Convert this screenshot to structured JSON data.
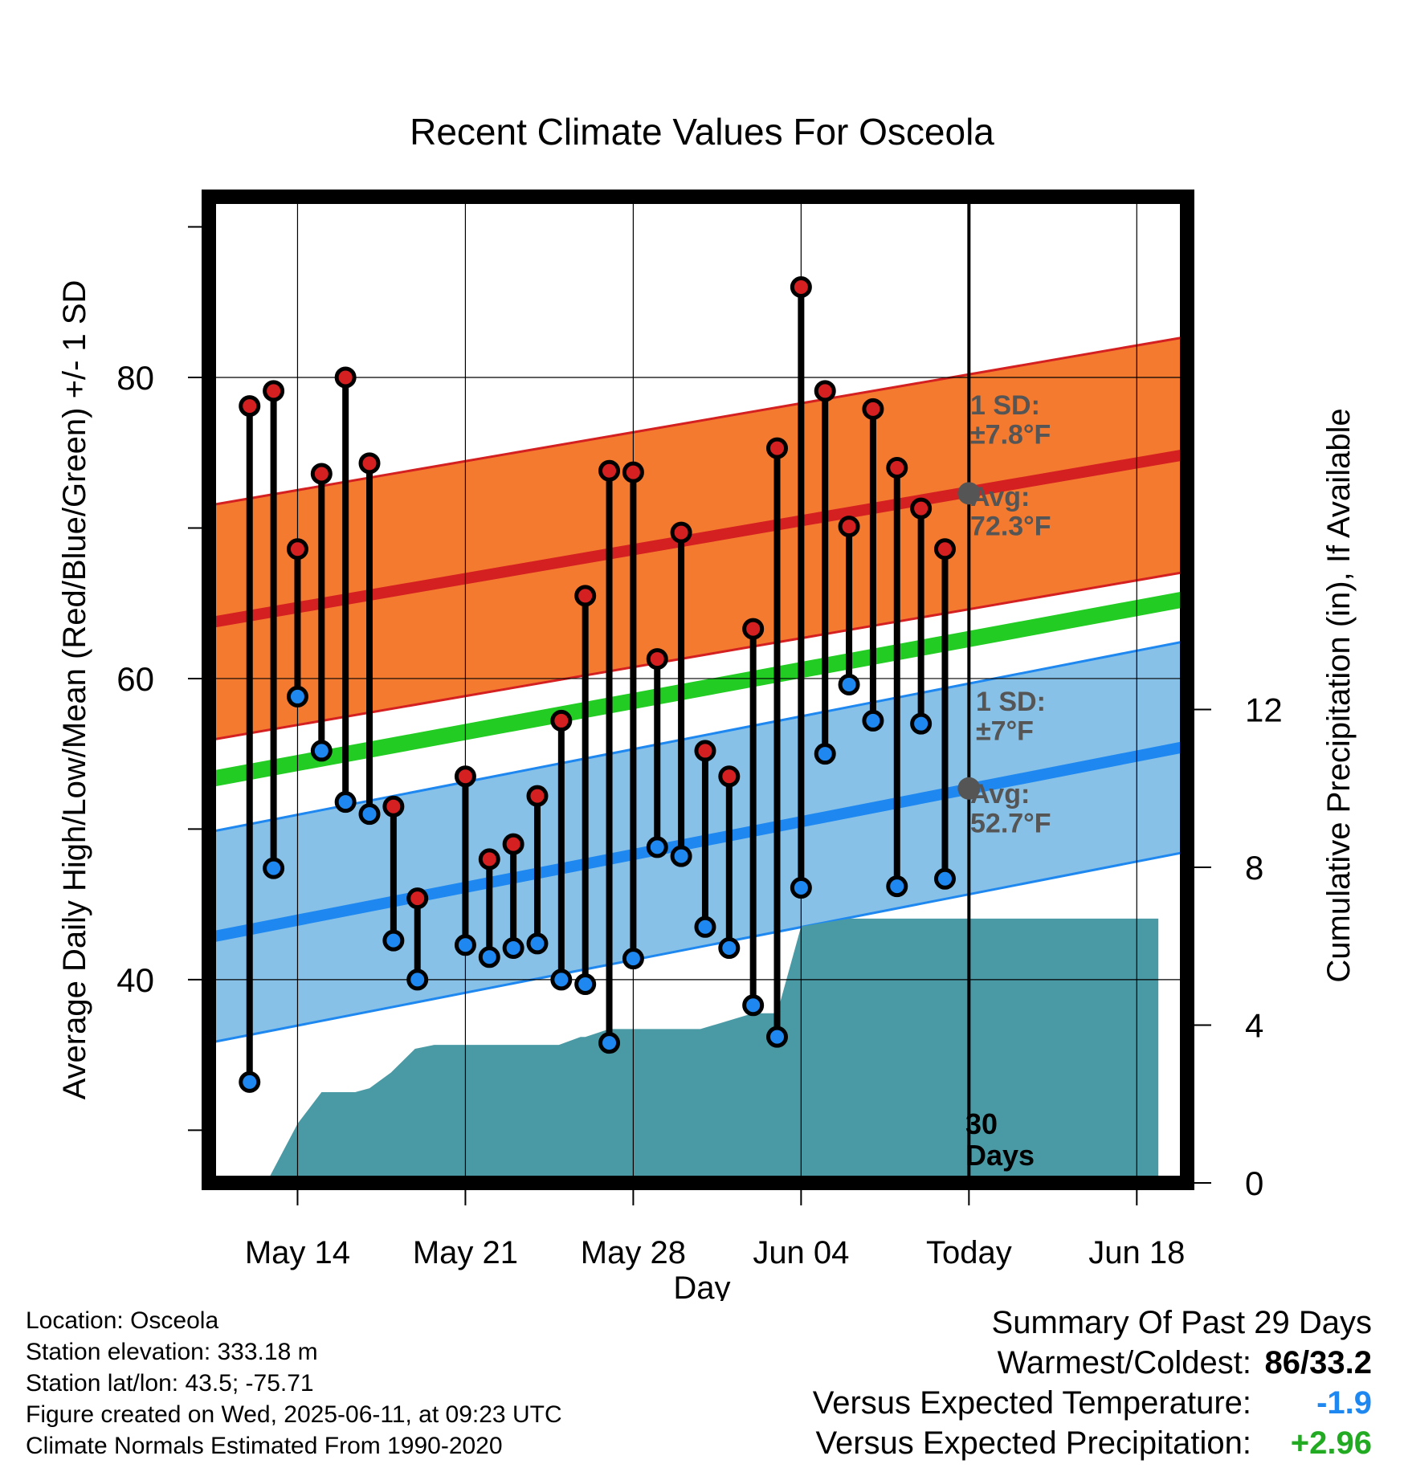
{
  "chart_data": {
    "type": "line",
    "title": "Recent Climate Values For Osceola",
    "xlabel": "Day",
    "ylabel": "Average Daily High/Low/Mean (Red/Blue/Green) +/- 1 SD",
    "y2label": "Cumulative Precipitation (in), If Available",
    "x_ticks": [
      "May 14",
      "May 21",
      "May 28",
      "Jun 04",
      "Today",
      "Jun 18"
    ],
    "y_ticks": [
      40,
      60,
      80
    ],
    "y2_ticks": [
      0,
      4,
      8,
      12
    ],
    "ylim": [
      26.5,
      92
    ],
    "y2lim": [
      0,
      25
    ],
    "xlim_days_from_may11": [
      -0.7,
      40.1
    ],
    "today_offset_days": 30,
    "today_marker_label": "30\nDays",
    "grid": true,
    "normals": {
      "high_avg": [
        63.7,
        74.9
      ],
      "high_sd": 7.8,
      "low_avg": [
        42.8,
        55.5
      ],
      "low_sd": 7.0,
      "mean_avg": [
        53.3,
        65.3
      ],
      "colors": {
        "high_band": "#f47a30",
        "high_edge": "#d42020",
        "low_band": "#87c1e8",
        "low_edge": "#1e88f0",
        "mean_line": "#22cc22",
        "precip": "#4a9aa5"
      }
    },
    "annotations": {
      "high_sd_label": "1 SD:\n±7.8°F",
      "high_avg_label": "Avg:\n72.3°F",
      "low_sd_label": "1 SD:\n±7°F",
      "low_avg_label": "Avg:\n52.7°F",
      "high_avg_value": 72.3,
      "low_avg_value": 52.7
    },
    "daily": {
      "day": [
        "May 12",
        "May 13",
        "May 14",
        "May 15",
        "May 16",
        "May 17",
        "May 18",
        "May 19",
        "May 20",
        "May 21",
        "May 22",
        "May 23",
        "May 24",
        "May 25",
        "May 26",
        "May 27",
        "May 28",
        "May 29",
        "May 30",
        "May 31",
        "Jun 01",
        "Jun 02",
        "Jun 03",
        "Jun 04",
        "Jun 05",
        "Jun 06",
        "Jun 07",
        "Jun 08",
        "Jun 09",
        "Jun 10"
      ],
      "high": [
        78.1,
        79.1,
        68.6,
        73.6,
        80.0,
        74.3,
        51.5,
        45.4,
        null,
        53.5,
        48.0,
        49.0,
        52.2,
        57.2,
        65.5,
        73.8,
        73.7,
        61.3,
        69.7,
        55.2,
        53.5,
        63.3,
        75.3,
        86.0,
        79.1,
        70.1,
        77.9,
        74.0,
        71.3,
        68.6
      ],
      "low": [
        33.2,
        47.4,
        58.8,
        55.2,
        51.8,
        51.0,
        42.6,
        40.0,
        null,
        42.3,
        41.5,
        42.1,
        42.4,
        40.0,
        39.7,
        35.8,
        41.4,
        48.8,
        48.2,
        43.5,
        42.1,
        38.3,
        36.2,
        46.1,
        55.0,
        59.6,
        57.2,
        46.2,
        57.0,
        46.7
      ]
    },
    "cumulative_precip": {
      "day_offset": [
        1.7,
        3.0,
        4.0,
        5.4,
        6.0,
        6.9,
        7.9,
        8.7,
        9.7,
        10.9,
        13.9,
        14.8,
        15.0,
        16.0,
        17.0,
        18.0,
        19.8,
        22.0,
        23.0,
        24.0,
        26.0,
        27.0,
        28.8,
        29.3,
        30.0,
        38.9
      ],
      "inches": [
        0.0,
        1.5,
        2.3,
        2.3,
        2.4,
        2.8,
        3.4,
        3.5,
        3.5,
        3.5,
        3.5,
        3.7,
        3.7,
        3.9,
        3.9,
        3.9,
        3.9,
        4.3,
        4.3,
        6.5,
        6.7,
        6.7,
        6.7,
        6.7,
        6.7,
        6.7
      ]
    }
  },
  "footer": {
    "location": "Location: Osceola",
    "elevation": "Station elevation: 333.18 m",
    "latlon": "Station lat/lon: 43.5; -75.71",
    "created": "Figure created on Wed, 2025-06-11, at 09:23 UTC",
    "normals_note": "Climate Normals Estimated From 1990-2020"
  },
  "summary": {
    "title": "Summary Of Past 29 Days",
    "warm_cold_label": "Warmest/Coldest:",
    "warm_cold_value": "86/33.2",
    "temp_label": "Versus Expected Temperature:",
    "temp_value": "-1.9",
    "temp_color": "#1e88f0",
    "precip_label": "Versus Expected Precipitation:",
    "precip_value": "+2.96",
    "precip_color": "#22aa22"
  }
}
